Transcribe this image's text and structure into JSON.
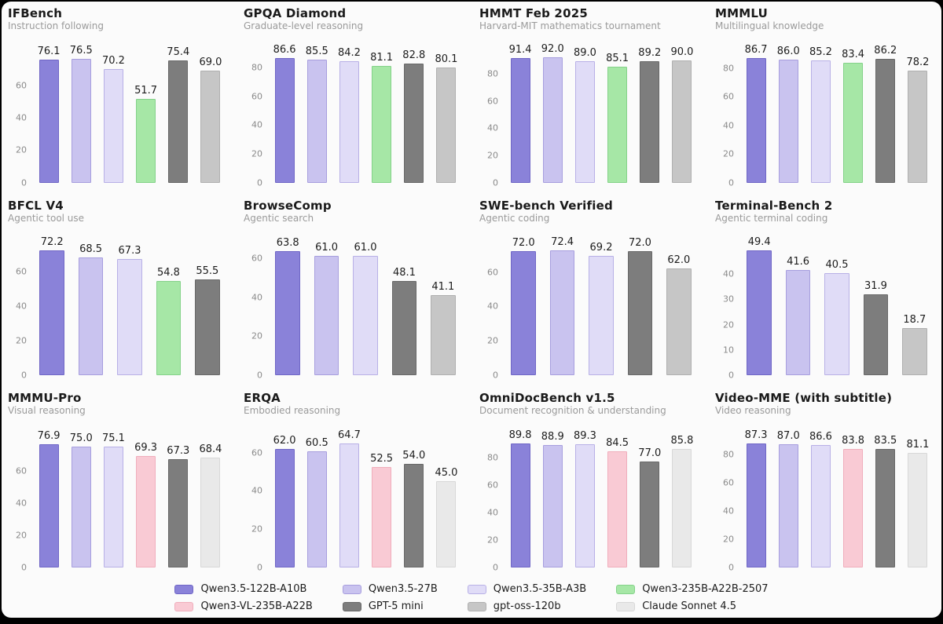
{
  "colors": {
    "background": "#fbfbfb",
    "frame": "#000000",
    "title_text": "#1a1a1a",
    "subtitle_text": "#9a9a9a",
    "tick_text": "#8a8a8a",
    "value_text": "#1c1c1c",
    "models": {
      "Qwen3.5-122B-A10B": {
        "fill": "#8a82d9",
        "border": "#6f66c6"
      },
      "Qwen3.5-27B": {
        "fill": "#c9c3ef",
        "border": "#a79ede"
      },
      "Qwen3.5-35B-A3B": {
        "fill": "#e0dcf7",
        "border": "#b8b0e6"
      },
      "Qwen3-235B-A22B-2507": {
        "fill": "#a6e7a6",
        "border": "#84d289"
      },
      "Qwen3-VL-235B-A22B": {
        "fill": "#f9cad4",
        "border": "#f0aebc"
      },
      "GPT-5 mini": {
        "fill": "#7d7d7d",
        "border": "#686868"
      },
      "gpt-oss-120b": {
        "fill": "#c6c6c6",
        "border": "#b0b0b0"
      },
      "Claude Sonnet 4.5": {
        "fill": "#e9e9e9",
        "border": "#d8d8d8"
      }
    }
  },
  "legend": {
    "columns": [
      [
        "Qwen3.5-122B-A10B",
        "Qwen3-VL-235B-A22B"
      ],
      [
        "Qwen3.5-27B",
        "GPT-5 mini"
      ],
      [
        "Qwen3.5-35B-A3B",
        "gpt-oss-120b"
      ],
      [
        "Qwen3-235B-A22B-2507",
        "Claude Sonnet 4.5"
      ]
    ]
  },
  "chart_data": [
    {
      "type": "bar",
      "title": "IFBench",
      "subtitle": "Instruction following",
      "yticks": [
        0,
        20,
        40,
        60
      ],
      "ylim": [
        0,
        80.5
      ],
      "bars": [
        {
          "model": "Qwen3.5-122B-A10B",
          "value": 76.1
        },
        {
          "model": "Qwen3.5-27B",
          "value": 76.5
        },
        {
          "model": "Qwen3.5-35B-A3B",
          "value": 70.2
        },
        {
          "model": "Qwen3-235B-A22B-2507",
          "value": 51.7
        },
        {
          "model": "GPT-5 mini",
          "value": 75.4
        },
        {
          "model": "gpt-oss-120b",
          "value": 69.0
        }
      ]
    },
    {
      "type": "bar",
      "title": "GPQA Diamond",
      "subtitle": "Graduate-level reasoning",
      "yticks": [
        0,
        20,
        40,
        60,
        80
      ],
      "ylim": [
        0,
        90.5
      ],
      "bars": [
        {
          "model": "Qwen3.5-122B-A10B",
          "value": 86.6
        },
        {
          "model": "Qwen3.5-27B",
          "value": 85.5
        },
        {
          "model": "Qwen3.5-35B-A3B",
          "value": 84.2
        },
        {
          "model": "Qwen3-235B-A22B-2507",
          "value": 81.1
        },
        {
          "model": "GPT-5 mini",
          "value": 82.8
        },
        {
          "model": "gpt-oss-120b",
          "value": 80.1
        }
      ]
    },
    {
      "type": "bar",
      "title": "HMMT Feb 2025",
      "subtitle": "Harvard-MIT mathematics tournament",
      "yticks": [
        0,
        20,
        40,
        60,
        80
      ],
      "ylim": [
        0,
        95.8
      ],
      "bars": [
        {
          "model": "Qwen3.5-122B-A10B",
          "value": 91.4
        },
        {
          "model": "Qwen3.5-27B",
          "value": 92.0
        },
        {
          "model": "Qwen3.5-35B-A3B",
          "value": 89.0
        },
        {
          "model": "Qwen3-235B-A22B-2507",
          "value": 85.1
        },
        {
          "model": "GPT-5 mini",
          "value": 89.2
        },
        {
          "model": "gpt-oss-120b",
          "value": 90.0
        }
      ]
    },
    {
      "type": "bar",
      "title": "MMMLU",
      "subtitle": "Multilingual knowledge",
      "yticks": [
        0,
        20,
        40,
        60,
        80
      ],
      "ylim": [
        0,
        91.0
      ],
      "bars": [
        {
          "model": "Qwen3.5-122B-A10B",
          "value": 86.7
        },
        {
          "model": "Qwen3.5-27B",
          "value": 86.0
        },
        {
          "model": "Qwen3.5-35B-A3B",
          "value": 85.2
        },
        {
          "model": "Qwen3-235B-A22B-2507",
          "value": 83.4
        },
        {
          "model": "GPT-5 mini",
          "value": 86.2
        },
        {
          "model": "gpt-oss-120b",
          "value": 78.2
        }
      ]
    },
    {
      "type": "bar",
      "title": "BFCL V4",
      "subtitle": "Agentic tool use",
      "yticks": [
        0,
        20,
        40,
        60
      ],
      "ylim": [
        0,
        75.8
      ],
      "bars": [
        {
          "model": "Qwen3.5-122B-A10B",
          "value": 72.2
        },
        {
          "model": "Qwen3.5-27B",
          "value": 68.5
        },
        {
          "model": "Qwen3.5-35B-A3B",
          "value": 67.3
        },
        {
          "model": "Qwen3-235B-A22B-2507",
          "value": 54.8
        },
        {
          "model": "GPT-5 mini",
          "value": 55.5
        }
      ]
    },
    {
      "type": "bar",
      "title": "BrowseComp",
      "subtitle": "Agentic search",
      "yticks": [
        0,
        20,
        40,
        60
      ],
      "ylim": [
        0,
        67.0
      ],
      "bars": [
        {
          "model": "Qwen3.5-122B-A10B",
          "value": 63.8
        },
        {
          "model": "Qwen3.5-27B",
          "value": 61.0
        },
        {
          "model": "Qwen3.5-35B-A3B",
          "value": 61.0
        },
        {
          "model": "GPT-5 mini",
          "value": 48.1
        },
        {
          "model": "gpt-oss-120b",
          "value": 41.1
        }
      ]
    },
    {
      "type": "bar",
      "title": "SWE-bench Verified",
      "subtitle": "Agentic coding",
      "yticks": [
        0,
        20,
        40,
        60
      ],
      "ylim": [
        0,
        76.0
      ],
      "bars": [
        {
          "model": "Qwen3.5-122B-A10B",
          "value": 72.0
        },
        {
          "model": "Qwen3.5-27B",
          "value": 72.4
        },
        {
          "model": "Qwen3.5-35B-A3B",
          "value": 69.2
        },
        {
          "model": "GPT-5 mini",
          "value": 72.0
        },
        {
          "model": "gpt-oss-120b",
          "value": 62.0
        }
      ]
    },
    {
      "type": "bar",
      "title": "Terminal-Bench 2",
      "subtitle": "Agentic terminal coding",
      "yticks": [
        0,
        10,
        20,
        30,
        40
      ],
      "ylim": [
        0,
        51.8
      ],
      "bars": [
        {
          "model": "Qwen3.5-122B-A10B",
          "value": 49.4
        },
        {
          "model": "Qwen3.5-27B",
          "value": 41.6
        },
        {
          "model": "Qwen3.5-35B-A3B",
          "value": 40.5
        },
        {
          "model": "GPT-5 mini",
          "value": 31.9
        },
        {
          "model": "gpt-oss-120b",
          "value": 18.7
        }
      ]
    },
    {
      "type": "bar",
      "title": "MMMU-Pro",
      "subtitle": "Visual reasoning",
      "yticks": [
        0,
        20,
        40,
        60
      ],
      "ylim": [
        0,
        81.3
      ],
      "bars": [
        {
          "model": "Qwen3.5-122B-A10B",
          "value": 76.9
        },
        {
          "model": "Qwen3.5-27B",
          "value": 75.0
        },
        {
          "model": "Qwen3.5-35B-A3B",
          "value": 75.1
        },
        {
          "model": "Qwen3-VL-235B-A22B",
          "value": 69.3
        },
        {
          "model": "GPT-5 mini",
          "value": 67.3
        },
        {
          "model": "Claude Sonnet 4.5",
          "value": 68.4
        }
      ]
    },
    {
      "type": "bar",
      "title": "ERQA",
      "subtitle": "Embodied reasoning",
      "yticks": [
        0,
        20,
        40,
        60
      ],
      "ylim": [
        0,
        68.2
      ],
      "bars": [
        {
          "model": "Qwen3.5-122B-A10B",
          "value": 62.0
        },
        {
          "model": "Qwen3.5-27B",
          "value": 60.5
        },
        {
          "model": "Qwen3.5-35B-A3B",
          "value": 64.7
        },
        {
          "model": "Qwen3-VL-235B-A22B",
          "value": 52.5
        },
        {
          "model": "GPT-5 mini",
          "value": 54.0
        },
        {
          "model": "Claude Sonnet 4.5",
          "value": 45.0
        }
      ]
    },
    {
      "type": "bar",
      "title": "OmniDocBench v1.5",
      "subtitle": "Document recognition & understanding",
      "yticks": [
        0,
        20,
        40,
        60,
        80
      ],
      "ylim": [
        0,
        94.8
      ],
      "bars": [
        {
          "model": "Qwen3.5-122B-A10B",
          "value": 89.8
        },
        {
          "model": "Qwen3.5-27B",
          "value": 88.9
        },
        {
          "model": "Qwen3.5-35B-A3B",
          "value": 89.3
        },
        {
          "model": "Qwen3-VL-235B-A22B",
          "value": 84.5
        },
        {
          "model": "GPT-5 mini",
          "value": 77.0
        },
        {
          "model": "Claude Sonnet 4.5",
          "value": 85.8
        }
      ]
    },
    {
      "type": "bar",
      "title": "Video-MME (with subtitle)",
      "subtitle": "Video reasoning",
      "yticks": [
        0,
        20,
        40,
        60,
        80
      ],
      "ylim": [
        0,
        92.2
      ],
      "bars": [
        {
          "model": "Qwen3.5-122B-A10B",
          "value": 87.3
        },
        {
          "model": "Qwen3.5-27B",
          "value": 87.0
        },
        {
          "model": "Qwen3.5-35B-A3B",
          "value": 86.6
        },
        {
          "model": "Qwen3-VL-235B-A22B",
          "value": 83.8
        },
        {
          "model": "GPT-5 mini",
          "value": 83.5
        },
        {
          "model": "Claude Sonnet 4.5",
          "value": 81.1
        }
      ]
    }
  ]
}
